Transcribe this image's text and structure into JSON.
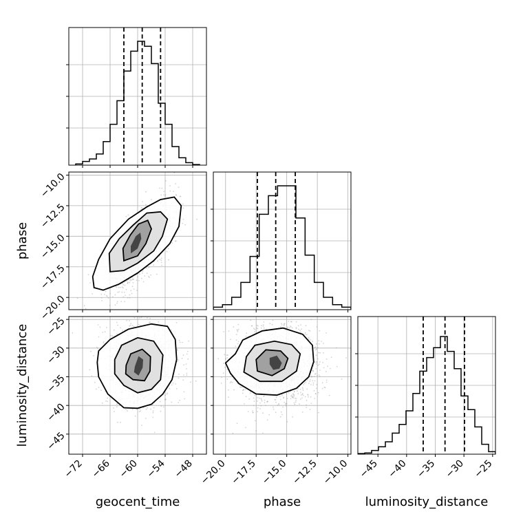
{
  "chart_data": {
    "type": "corner",
    "parameters": [
      "geocent_time",
      "phase",
      "luminosity_distance"
    ],
    "ticks": {
      "geocent_time": [
        -72,
        -66,
        -60,
        -54,
        -48
      ],
      "phase": [
        -20.0,
        -17.5,
        -15.0,
        -12.5,
        -10.0
      ],
      "luminosity_distance": [
        -45,
        -40,
        -35,
        -30,
        -25
      ]
    },
    "tick_labels": {
      "geocent_time": [
        "−72",
        "−66",
        "−60",
        "−54",
        "−48"
      ],
      "phase": [
        "−20.0",
        "−17.5",
        "−15.0",
        "−12.5",
        "−10.0"
      ],
      "luminosity_distance": [
        "−45",
        "−40",
        "−35",
        "−30",
        "−25"
      ]
    },
    "ranges": {
      "geocent_time": [
        -75,
        -45
      ],
      "phase": [
        -21,
        -9.75
      ],
      "luminosity_distance": [
        -48.5,
        -24.5
      ]
    },
    "quantiles": {
      "geocent_time": [
        -63,
        -59,
        -55
      ],
      "phase": [
        -17.4,
        -15.9,
        -14.3
      ],
      "luminosity_distance": [
        -37.1,
        -33.3,
        -29.9
      ]
    },
    "histograms": {
      "geocent_time": {
        "edges": [
          -73.5,
          -72,
          -70.5,
          -69,
          -67.5,
          -66,
          -64.5,
          -63,
          -61.5,
          -60,
          -58.5,
          -57,
          -55.5,
          -54,
          -52.5,
          -51,
          -49.5,
          -48,
          -46.5
        ],
        "counts": [
          0.01,
          0.03,
          0.05,
          0.09,
          0.19,
          0.33,
          0.52,
          0.76,
          0.92,
          1.0,
          0.96,
          0.82,
          0.5,
          0.33,
          0.15,
          0.06,
          0.02,
          0.005
        ]
      },
      "phase": {
        "edges": [
          -21,
          -20.25,
          -19.5,
          -18.75,
          -18,
          -17.25,
          -16.5,
          -15.75,
          -15,
          -14.25,
          -13.5,
          -12.75,
          -12,
          -11.25,
          -10.5,
          -9.75
        ],
        "counts": [
          0.02,
          0.04,
          0.1,
          0.22,
          0.43,
          0.77,
          0.92,
          1.0,
          1.0,
          0.74,
          0.44,
          0.22,
          0.1,
          0.04,
          0.02
        ]
      },
      "luminosity_distance": {
        "edges": [
          -48.5,
          -47.3,
          -46.1,
          -44.9,
          -43.7,
          -42.5,
          -41.3,
          -40.1,
          -38.9,
          -37.7,
          -36.5,
          -35.3,
          -34.1,
          -32.9,
          -31.7,
          -30.5,
          -29.3,
          -28.1,
          -26.9,
          -25.7,
          -24.5
        ],
        "counts": [
          0.005,
          0.01,
          0.03,
          0.06,
          0.1,
          0.17,
          0.24,
          0.35,
          0.49,
          0.67,
          0.78,
          0.86,
          0.95,
          0.83,
          0.69,
          0.47,
          0.36,
          0.22,
          0.08,
          0.02
        ]
      }
    },
    "contours": {
      "phase_vs_geocent_time": [
        {
          "points": [
            [
              -69.5,
              -19.2
            ],
            [
              -67.5,
              -19.4
            ],
            [
              -64,
              -18.9
            ],
            [
              -60,
              -18.0
            ],
            [
              -56.5,
              -17.0
            ],
            [
              -53,
              -15.6
            ],
            [
              -51,
              -14.2
            ],
            [
              -50.5,
              -12.5
            ],
            [
              -52,
              -11.8
            ],
            [
              -55,
              -12.0
            ],
            [
              -58,
              -12.6
            ],
            [
              -62,
              -13.6
            ],
            [
              -66,
              -15.2
            ],
            [
              -68.5,
              -16.9
            ],
            [
              -69.8,
              -18.3
            ]
          ]
        },
        {
          "points": [
            [
              -66,
              -17.9
            ],
            [
              -63,
              -17.8
            ],
            [
              -60,
              -17.2
            ],
            [
              -56.5,
              -16.2
            ],
            [
              -54.6,
              -15.0
            ],
            [
              -53.5,
              -13.6
            ],
            [
              -55,
              -13.0
            ],
            [
              -58,
              -13.1
            ],
            [
              -61,
              -14.1
            ],
            [
              -64,
              -15.2
            ],
            [
              -66.2,
              -16.4
            ]
          ]
        },
        {
          "points": [
            [
              -63,
              -17.0
            ],
            [
              -60,
              -16.6
            ],
            [
              -58.2,
              -15.6
            ],
            [
              -57,
              -14.4
            ],
            [
              -57.8,
              -13.7
            ],
            [
              -59.8,
              -14.0
            ],
            [
              -61.6,
              -14.9
            ],
            [
              -63.2,
              -16.0
            ]
          ]
        },
        {
          "points": [
            [
              -61.5,
              -16.4
            ],
            [
              -60,
              -16.0
            ],
            [
              -59.2,
              -15.2
            ],
            [
              -59.4,
              -14.7
            ],
            [
              -60.4,
              -15.0
            ],
            [
              -61.5,
              -15.8
            ]
          ]
        }
      ],
      "luminosity_distance_vs_geocent_time": [
        {
          "points": [
            [
              -68.5,
              -30.5
            ],
            [
              -66,
              -28.5
            ],
            [
              -62,
              -26.7
            ],
            [
              -57,
              -25.8
            ],
            [
              -53.5,
              -26.2
            ],
            [
              -51.8,
              -28.5
            ],
            [
              -51.5,
              -32.0
            ],
            [
              -52.5,
              -35.5
            ],
            [
              -54.5,
              -38.0
            ],
            [
              -57,
              -39.8
            ],
            [
              -60,
              -40.5
            ],
            [
              -63,
              -40.4
            ],
            [
              -66.5,
              -38.0
            ],
            [
              -68.5,
              -35.0
            ],
            [
              -68.8,
              -32.5
            ]
          ]
        },
        {
          "points": [
            [
              -65,
              -32.0
            ],
            [
              -63.5,
              -29.5
            ],
            [
              -60,
              -28.2
            ],
            [
              -56.5,
              -28.8
            ],
            [
              -54.5,
              -31.2
            ],
            [
              -55,
              -35.5
            ],
            [
              -57,
              -37.2
            ],
            [
              -60,
              -37.8
            ],
            [
              -63,
              -36.5
            ],
            [
              -65,
              -34.5
            ]
          ]
        },
        {
          "points": [
            [
              -62.5,
              -33.0
            ],
            [
              -61.5,
              -31.0
            ],
            [
              -59,
              -30.2
            ],
            [
              -57.2,
              -31.5
            ],
            [
              -57.3,
              -34.0
            ],
            [
              -58.5,
              -35.7
            ],
            [
              -61,
              -35.5
            ],
            [
              -62.6,
              -34.5
            ]
          ]
        },
        {
          "points": [
            [
              -60.6,
              -33.2
            ],
            [
              -59.8,
              -31.4
            ],
            [
              -58.8,
              -32.0
            ],
            [
              -58.9,
              -33.4
            ],
            [
              -59.8,
              -34.8
            ],
            [
              -60.8,
              -34.2
            ]
          ]
        }
      ],
      "luminosity_distance_vs_phase": [
        {
          "points": [
            [
              -19.2,
              -31.0
            ],
            [
              -18.6,
              -28.6
            ],
            [
              -17,
              -27.0
            ],
            [
              -15.3,
              -26.5
            ],
            [
              -13.7,
              -27.6
            ],
            [
              -12.9,
              -29.5
            ],
            [
              -12.8,
              -32.4
            ],
            [
              -13.2,
              -35.0
            ],
            [
              -14.2,
              -37.0
            ],
            [
              -15.8,
              -38.2
            ],
            [
              -17.5,
              -38.0
            ],
            [
              -18.9,
              -36.2
            ],
            [
              -19.6,
              -34.4
            ],
            [
              -20.0,
              -32.6
            ]
          ]
        },
        {
          "points": [
            [
              -18.3,
              -31.5
            ],
            [
              -17.6,
              -29.5
            ],
            [
              -16,
              -28.8
            ],
            [
              -14.6,
              -29.4
            ],
            [
              -13.9,
              -31.0
            ],
            [
              -14.2,
              -34.0
            ],
            [
              -15.4,
              -35.8
            ],
            [
              -17.2,
              -35.8
            ],
            [
              -18.5,
              -34.2
            ]
          ]
        },
        {
          "points": [
            [
              -17.5,
              -32.0
            ],
            [
              -16.7,
              -30.3
            ],
            [
              -15.5,
              -30.5
            ],
            [
              -14.9,
              -31.8
            ],
            [
              -15.2,
              -33.6
            ],
            [
              -16.2,
              -34.8
            ],
            [
              -17.4,
              -34.0
            ]
          ]
        },
        {
          "points": [
            [
              -16.4,
              -31.7
            ],
            [
              -15.8,
              -31.3
            ],
            [
              -15.4,
              -32.6
            ],
            [
              -15.6,
              -33.6
            ],
            [
              -16.1,
              -33.8
            ],
            [
              -16.4,
              -32.8
            ]
          ]
        }
      ]
    },
    "correlations": {
      "phase_vs_geocent_time": {
        "mean": [
          -59.3,
          -15.8
        ],
        "sd": [
          3.6,
          1.8
        ],
        "rho": 0.72
      },
      "luminosity_distance_vs_geocent_time": {
        "mean": [
          -59.3,
          -33.1
        ],
        "sd": [
          3.6,
          3.5
        ],
        "rho": 0.0
      },
      "luminosity_distance_vs_phase": {
        "mean": [
          -15.8,
          -33.1
        ],
        "sd": [
          1.8,
          3.5
        ],
        "rho": 0.0
      }
    },
    "grid": true,
    "colors": {
      "hist": "#000000",
      "quantile_line": "#000000",
      "points": "#9e9e9e",
      "grid": "#b0b0b0"
    }
  }
}
